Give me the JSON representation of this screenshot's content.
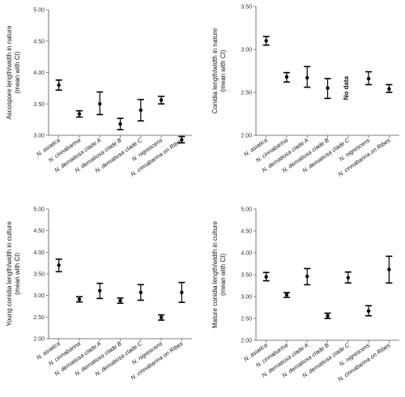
{
  "chart_data": [
    {
      "type": "scatter",
      "ylabel_lines": [
        "Ascospore length/width in nature",
        "(mean with CI)"
      ],
      "ylim": [
        3.0,
        5.0
      ],
      "yticks": [
        "5.00",
        "4.50",
        "4.00",
        "3.50",
        "3.00"
      ],
      "grid": false,
      "categories": [
        "N. asiatica",
        "N. cinnabarina",
        "N. dematiosa clade A",
        "N. dematiosa clade B",
        "N. dematiosa clade C",
        "N. nigrescens",
        "N. cinnabarina on Ribes"
      ],
      "points": [
        {
          "mean": 3.8,
          "low": 3.72,
          "high": 3.88
        },
        {
          "mean": 3.34,
          "low": 3.29,
          "high": 3.39
        },
        {
          "mean": 3.5,
          "low": 3.33,
          "high": 3.69
        },
        {
          "mean": 3.18,
          "low": 3.09,
          "high": 3.27
        },
        {
          "mean": 3.4,
          "low": 3.23,
          "high": 3.57
        },
        {
          "mean": 3.56,
          "low": 3.5,
          "high": 3.62
        },
        {
          "mean": 2.93,
          "low": 2.88,
          "high": 2.98
        }
      ]
    },
    {
      "type": "scatter",
      "ylabel_lines": [
        "Conidia length/width in nature",
        "(mean with CI)"
      ],
      "ylim": [
        2.0,
        3.5
      ],
      "yticks": [
        "3.50",
        "3.00",
        "2.50",
        "2.00"
      ],
      "grid": false,
      "categories": [
        "N. asiatica",
        "N. cinnabarina",
        "N. dematiosa clade A",
        "N. dematiosa clade B",
        "N. dematiosa clade C",
        "N. nigrescens",
        "N. cinnabarina on Ribes"
      ],
      "points": [
        {
          "mean": 3.1,
          "low": 3.05,
          "high": 3.15
        },
        {
          "mean": 2.68,
          "low": 2.62,
          "high": 2.73
        },
        {
          "mean": 2.67,
          "low": 2.56,
          "high": 2.8
        },
        {
          "mean": 2.55,
          "low": 2.43,
          "high": 2.66
        },
        null,
        {
          "mean": 2.66,
          "low": 2.59,
          "high": 2.74
        },
        {
          "mean": 2.54,
          "low": 2.5,
          "high": 2.59
        }
      ],
      "annotations": [
        {
          "category": "N. dematiosa clade C",
          "text": "No data"
        }
      ]
    },
    {
      "type": "scatter",
      "ylabel_lines": [
        "Young conidia length/width in culture",
        "(mean with CI)"
      ],
      "ylim": [
        2.0,
        5.0
      ],
      "yticks": [
        "5.00",
        "4.50",
        "4.00",
        "3.50",
        "3.00",
        "2.50",
        "2.00"
      ],
      "grid": false,
      "categories": [
        "N. asiatica",
        "N. cinnabarina",
        "N. dematiosa clade A",
        "N. dematiosa clade B",
        "N. dematiosa clade C",
        "N. nigrescens",
        "N. cinnabarina on Ribes"
      ],
      "points": [
        {
          "mean": 3.7,
          "low": 3.55,
          "high": 3.84
        },
        {
          "mean": 2.91,
          "low": 2.85,
          "high": 2.97
        },
        {
          "mean": 3.11,
          "low": 2.93,
          "high": 3.28
        },
        {
          "mean": 2.88,
          "low": 2.82,
          "high": 2.94
        },
        {
          "mean": 3.07,
          "low": 2.89,
          "high": 3.25
        },
        {
          "mean": 2.49,
          "low": 2.43,
          "high": 2.55
        },
        {
          "mean": 3.07,
          "low": 2.84,
          "high": 3.3
        }
      ]
    },
    {
      "type": "scatter",
      "ylabel_lines": [
        "Mature conidia length/width in culture",
        "(mean with CI)"
      ],
      "ylim": [
        2.0,
        5.0
      ],
      "yticks": [
        "5.00",
        "4.50",
        "4.00",
        "3.50",
        "3.00",
        "2.50",
        "2.00"
      ],
      "grid": false,
      "categories": [
        "N. asiatica",
        "N. cinnabarina",
        "N. dematiosa clade A",
        "N. dematiosa clade B",
        "N. dematiosa clade C",
        "N. nigrescens",
        "N. cinnabarina on Ribes"
      ],
      "points": [
        {
          "mean": 3.45,
          "low": 3.36,
          "high": 3.55
        },
        {
          "mean": 3.04,
          "low": 2.98,
          "high": 3.09
        },
        {
          "mean": 3.46,
          "low": 3.27,
          "high": 3.64
        },
        {
          "mean": 2.56,
          "low": 2.5,
          "high": 2.62
        },
        {
          "mean": 3.43,
          "low": 3.31,
          "high": 3.56
        },
        {
          "mean": 2.67,
          "low": 2.56,
          "high": 2.79
        },
        {
          "mean": 3.62,
          "low": 3.31,
          "high": 3.92
        }
      ]
    }
  ]
}
